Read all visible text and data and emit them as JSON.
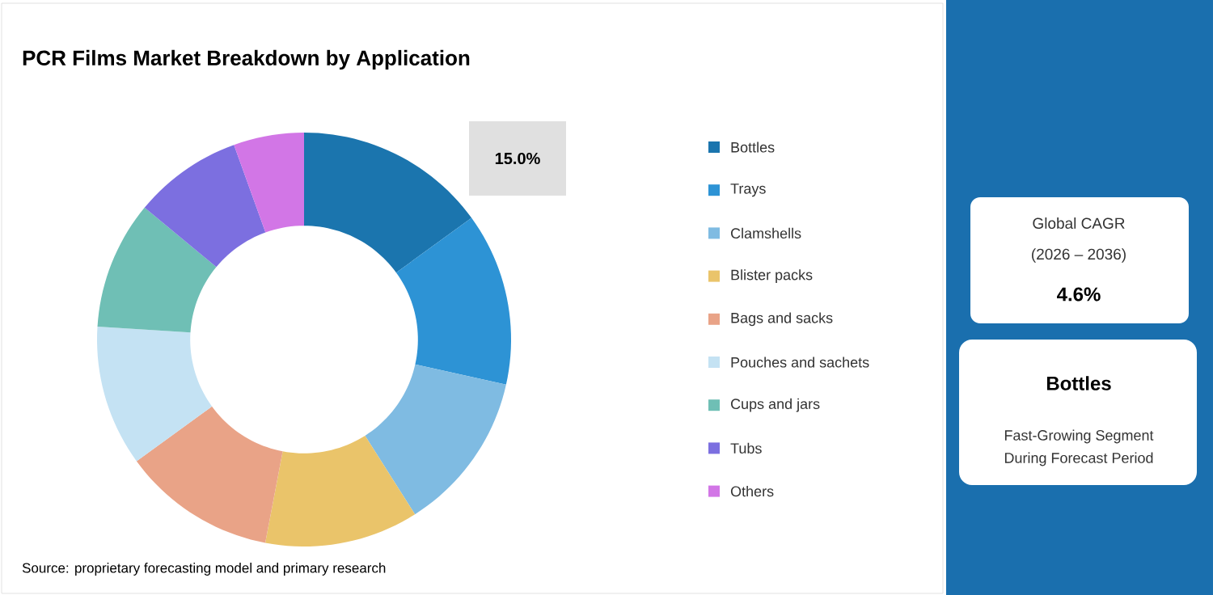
{
  "chart_data": {
    "type": "donut",
    "title": "PCR Films Market Breakdown by Application",
    "categories": [
      "Bottles",
      "Trays",
      "Clamshells",
      "Blister packs",
      "Bags and sacks",
      "Pouches and sachets",
      "Cups and jars",
      "Tubs",
      "Others"
    ],
    "values": [
      15.0,
      13.5,
      12.5,
      12,
      12,
      11,
      10,
      8.5,
      5.5
    ],
    "colors": [
      "#1b75ae",
      "#2d93d5",
      "#7fbbe2",
      "#eac46a",
      "#e9a387",
      "#c4e2f3",
      "#6fbfb5",
      "#7c6fe0",
      "#d276e6"
    ],
    "value_labels": [
      "15.0%",
      null,
      null,
      null,
      null,
      null,
      null,
      null,
      null
    ],
    "legend": "right",
    "annotations": [
      "Source: proprietary forecasting model and primary research",
      "Global CAGR",
      "(2026 – 2036)",
      "4.6%",
      "Bottles",
      "Fast-Growing Segment",
      "During Forecast Period"
    ]
  }
}
